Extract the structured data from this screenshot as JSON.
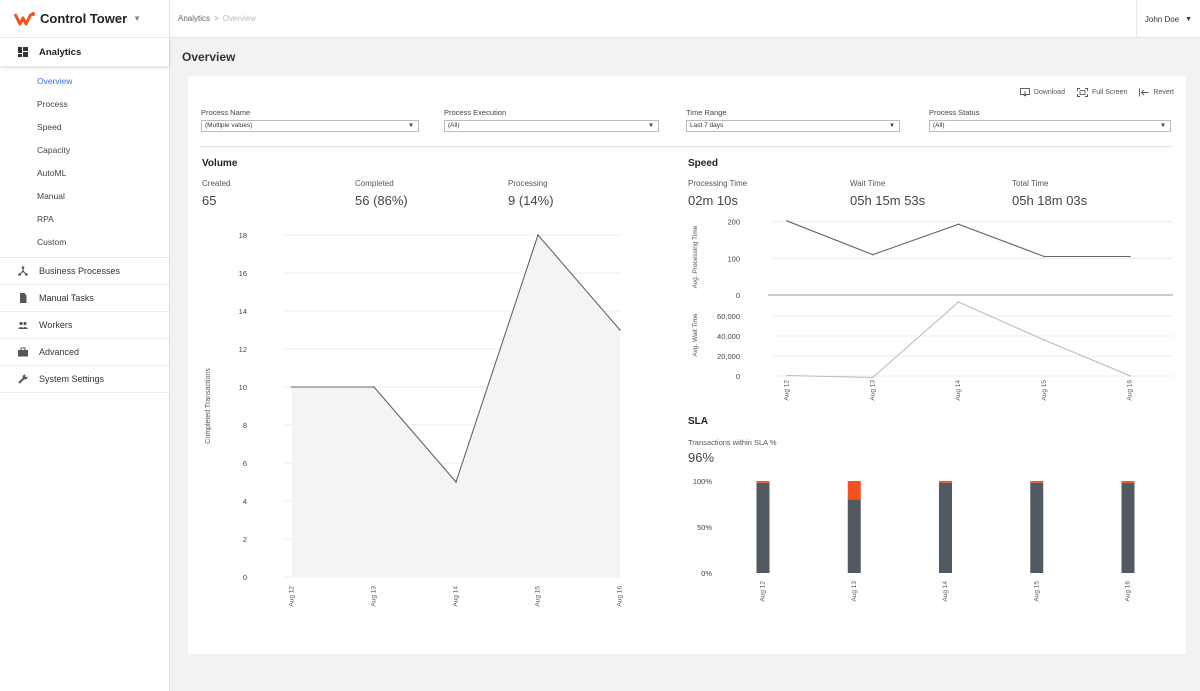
{
  "app": {
    "name": "Control Tower"
  },
  "sidebar": {
    "section": "Analytics",
    "sub_items": [
      "Overview",
      "Process",
      "Speed",
      "Capacity",
      "AutoML",
      "Manual",
      "RPA",
      "Custom"
    ],
    "items": [
      {
        "label": "Business Processes",
        "icon": "sitemap-icon"
      },
      {
        "label": "Manual Tasks",
        "icon": "document-icon"
      },
      {
        "label": "Workers",
        "icon": "people-icon"
      },
      {
        "label": "Advanced",
        "icon": "briefcase-icon"
      },
      {
        "label": "System Settings",
        "icon": "wrench-icon"
      }
    ]
  },
  "header": {
    "breadcrumb": [
      "Analytics",
      "Overview"
    ],
    "user": "John Doe"
  },
  "page_title": "Overview",
  "toolbar": {
    "download": "Download",
    "fullscreen": "Full Screen",
    "revert": "Revert"
  },
  "filters": [
    {
      "label": "Process Name",
      "value": "(Multiple values)"
    },
    {
      "label": "Process Execution",
      "value": "(All)"
    },
    {
      "label": "Time Range",
      "value": "Last 7 days"
    },
    {
      "label": "Process Status",
      "value": "(All)"
    }
  ],
  "volume": {
    "title": "Volume",
    "kpis": [
      {
        "label": "Created",
        "value": "65"
      },
      {
        "label": "Completed",
        "value": "56 (86%)"
      },
      {
        "label": "Processing",
        "value": "9 (14%)"
      }
    ]
  },
  "speed": {
    "title": "Speed",
    "kpis": [
      {
        "label": "Processing Time",
        "value": "02m 10s"
      },
      {
        "label": "Wait Time",
        "value": "05h 15m 53s"
      },
      {
        "label": "Total Time",
        "value": "05h 18m 03s"
      }
    ]
  },
  "sla": {
    "title": "SLA",
    "kpi_label": "Transactions within SLA %",
    "kpi_value": "96%"
  },
  "chart_data": [
    {
      "type": "area",
      "ylabel": "Completed Transactions",
      "categories": [
        "Aug 12",
        "Aug 13",
        "Aug 14",
        "Aug 15",
        "Aug 16"
      ],
      "values": [
        10,
        10,
        5,
        18,
        13
      ],
      "ylim": [
        0,
        18
      ],
      "yticks": [
        0,
        2,
        4,
        6,
        8,
        10,
        12,
        14,
        16,
        18
      ],
      "ytick_labels": [
        "0",
        "2",
        "4",
        "6",
        "8",
        "10",
        "12",
        "14",
        "16",
        "18"
      ],
      "grid": true,
      "colors": {
        "line": "#666666",
        "fill": "#f4f4f7"
      }
    },
    {
      "type": "line",
      "ylabel": "Avg. Processing Time",
      "categories": [
        "Aug 12",
        "Aug 13",
        "Aug 14",
        "Aug 15",
        "Aug 16"
      ],
      "values": [
        202,
        110,
        193,
        105,
        105
      ],
      "ylim": [
        0,
        210
      ],
      "yticks": [
        0,
        100,
        200
      ],
      "ytick_labels": [
        "0",
        "100",
        "200"
      ],
      "colors": {
        "line": "#666666"
      }
    },
    {
      "type": "line",
      "ylabel": "Avg. Wait Time",
      "categories": [
        "Aug 12",
        "Aug 13",
        "Aug 14",
        "Aug 15",
        "Aug 16"
      ],
      "values": [
        500,
        -1500,
        74000,
        36000,
        200
      ],
      "ylim": [
        -2000,
        76000
      ],
      "yticks": [
        0,
        20000,
        40000,
        60000
      ],
      "ytick_labels": [
        "0",
        "20,000",
        "40,000",
        "60,000"
      ],
      "colors": {
        "line": "#bbbbbb"
      }
    },
    {
      "type": "bar",
      "stacked": true,
      "categories": [
        "Aug 12",
        "Aug 13",
        "Aug 14",
        "Aug 15",
        "Aug 16"
      ],
      "series": [
        {
          "values": [
            98,
            80,
            98,
            98,
            98
          ],
          "color": "#525a61"
        },
        {
          "values": [
            2,
            20,
            2,
            2,
            2
          ],
          "color": "#f2521d"
        }
      ],
      "ylim": [
        0,
        100
      ],
      "yticks": [
        0,
        50,
        100
      ],
      "ytick_labels": [
        "0%",
        "50%",
        "100%"
      ]
    }
  ]
}
